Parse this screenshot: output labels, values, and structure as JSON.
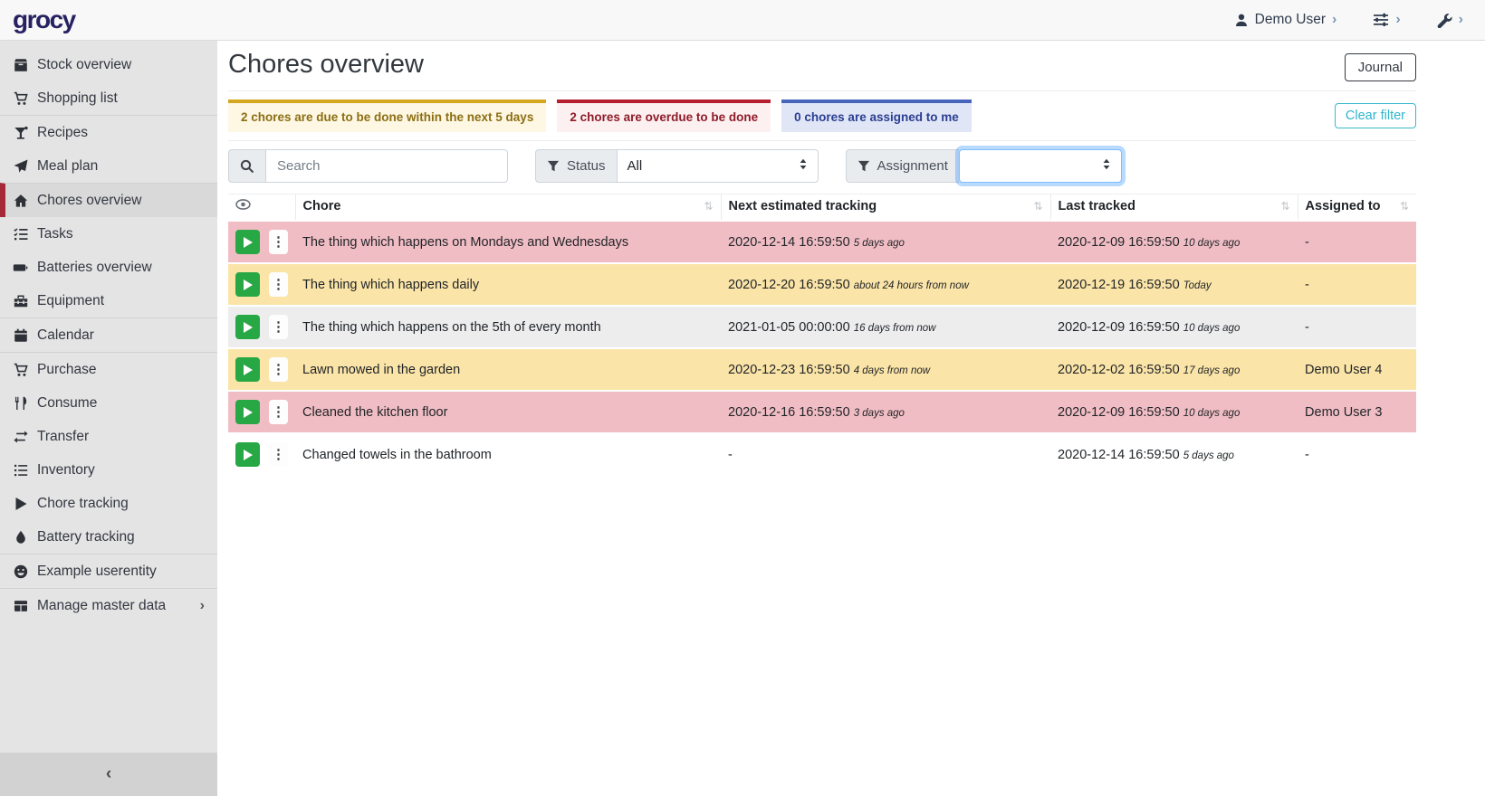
{
  "brand": "grocy",
  "topbar": {
    "user_label": "Demo User"
  },
  "sidebar": {
    "collapse_glyph": "‹",
    "items": [
      {
        "label": "Stock overview",
        "icon": "box"
      },
      {
        "label": "Shopping list",
        "icon": "shopping-cart"
      },
      {
        "label": "Recipes",
        "icon": "cocktail",
        "group_start": true
      },
      {
        "label": "Meal plan",
        "icon": "paper-plane"
      },
      {
        "label": "Chores overview",
        "icon": "home",
        "active": true,
        "group_start": true
      },
      {
        "label": "Tasks",
        "icon": "tasks"
      },
      {
        "label": "Batteries overview",
        "icon": "battery"
      },
      {
        "label": "Equipment",
        "icon": "toolbox"
      },
      {
        "label": "Calendar",
        "icon": "calendar",
        "group_start": true
      },
      {
        "label": "Purchase",
        "icon": "shopping-cart",
        "group_start": true
      },
      {
        "label": "Consume",
        "icon": "utensils"
      },
      {
        "label": "Transfer",
        "icon": "exchange"
      },
      {
        "label": "Inventory",
        "icon": "list"
      },
      {
        "label": "Chore tracking",
        "icon": "play"
      },
      {
        "label": "Battery tracking",
        "icon": "droplet"
      },
      {
        "label": "Example userentity",
        "icon": "smiley",
        "group_start": true
      },
      {
        "label": "Manage master data",
        "icon": "table",
        "group_start": true,
        "chevron": "›"
      }
    ]
  },
  "page": {
    "title": "Chores overview",
    "journal_button": "Journal",
    "clear_filter_button": "Clear filter",
    "banners": [
      {
        "text": "2 chores are due to be done within the next 5 days",
        "type": "warning"
      },
      {
        "text": "2 chores are overdue to be done",
        "type": "danger"
      },
      {
        "text": "0 chores are assigned to me",
        "type": "info"
      }
    ],
    "filters": {
      "search_placeholder": "Search",
      "status_label": "Status",
      "status_value": "All",
      "assignment_label": "Assignment",
      "assignment_value": ""
    },
    "table": {
      "columns": [
        "Chore",
        "Next estimated tracking",
        "Last tracked",
        "Assigned to"
      ],
      "sort_glyph": "⇅",
      "kebab_glyph": "⋮",
      "rows": [
        {
          "chore": "The thing which happens on Mondays and Wednesdays",
          "next": "2020-12-14 16:59:50",
          "next_rel": "5 days ago",
          "last": "2020-12-09 16:59:50",
          "last_rel": "10 days ago",
          "assigned": "-",
          "status": "danger"
        },
        {
          "chore": "The thing which happens daily",
          "next": "2020-12-20 16:59:50",
          "next_rel": "about 24 hours from now",
          "last": "2020-12-19 16:59:50",
          "last_rel": "Today",
          "assigned": "-",
          "status": "warning"
        },
        {
          "chore": "The thing which happens on the 5th of every month",
          "next": "2021-01-05 00:00:00",
          "next_rel": "16 days from now",
          "last": "2020-12-09 16:59:50",
          "last_rel": "10 days ago",
          "assigned": "-",
          "status": "neutral"
        },
        {
          "chore": "Lawn mowed in the garden",
          "next": "2020-12-23 16:59:50",
          "next_rel": "4 days from now",
          "last": "2020-12-02 16:59:50",
          "last_rel": "17 days ago",
          "assigned": "Demo User 4",
          "status": "warning"
        },
        {
          "chore": "Cleaned the kitchen floor",
          "next": "2020-12-16 16:59:50",
          "next_rel": "3 days ago",
          "last": "2020-12-09 16:59:50",
          "last_rel": "10 days ago",
          "assigned": "Demo User 3",
          "status": "danger"
        },
        {
          "chore": "Changed towels in the bathroom",
          "next": "-",
          "next_rel": "",
          "last": "2020-12-14 16:59:50",
          "last_rel": "5 days ago",
          "assigned": "-",
          "status": "plain"
        }
      ]
    }
  },
  "colors": {
    "accent_red": "#a52a37",
    "success_green": "#28a745",
    "info_teal": "#2fb5cc",
    "warning_gold": "#d5a71e",
    "danger_red": "#b51f30",
    "banner_blue": "#4765bb"
  }
}
